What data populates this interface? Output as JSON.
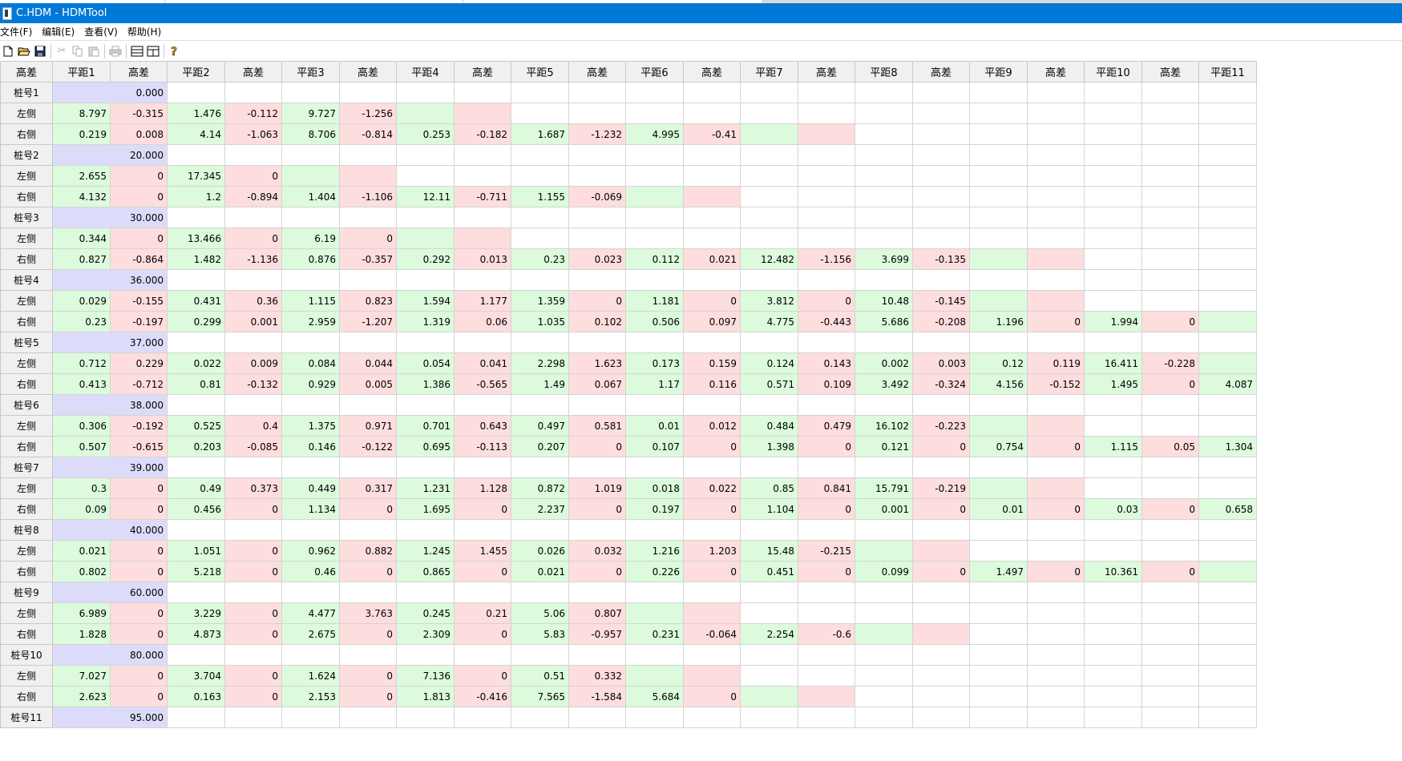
{
  "window": {
    "title": "C.HDM - HDMTool"
  },
  "menu": [
    "文件(F)",
    "编辑(E)",
    "查看(V)",
    "帮助(H)"
  ],
  "toolbar_icons": [
    "new-icon",
    "open-icon",
    "save-icon",
    "cut-icon",
    "copy-icon",
    "paste-icon",
    "print-icon",
    "horizontal-split-icon",
    "vertical-split-icon",
    "help-icon"
  ],
  "colors": {
    "titlebar": "#0078d7",
    "green_cell": "#dcfadc",
    "pink_cell": "#fddddd",
    "station_cell": "#dcdcfa"
  },
  "grid": {
    "header": [
      "高差",
      "平距1",
      "高差",
      "平距2",
      "高差",
      "平距3",
      "高差",
      "平距4",
      "高差",
      "平距5",
      "高差",
      "平距6",
      "高差",
      "平距7",
      "高差",
      "平距8",
      "高差",
      "平距9",
      "高差",
      "平距10",
      "高差",
      "平距11"
    ],
    "rows": [
      {
        "label": "桩号1",
        "type": "station",
        "value": "0.000"
      },
      {
        "label": "左侧",
        "type": "side",
        "cells": [
          "8.797",
          "-0.315",
          "1.476",
          "-0.112",
          "9.727",
          "-1.256",
          "",
          ""
        ]
      },
      {
        "label": "右侧",
        "type": "side",
        "cells": [
          "0.219",
          "0.008",
          "4.14",
          "-1.063",
          "8.706",
          "-0.814",
          "0.253",
          "-0.182",
          "1.687",
          "-1.232",
          "4.995",
          "-0.41",
          "",
          ""
        ]
      },
      {
        "label": "桩号2",
        "type": "station",
        "value": "20.000"
      },
      {
        "label": "左侧",
        "type": "side",
        "cells": [
          "2.655",
          "0",
          "17.345",
          "0",
          "",
          ""
        ]
      },
      {
        "label": "右侧",
        "type": "side",
        "cells": [
          "4.132",
          "0",
          "1.2",
          "-0.894",
          "1.404",
          "-1.106",
          "12.11",
          "-0.711",
          "1.155",
          "-0.069",
          "",
          ""
        ]
      },
      {
        "label": "桩号3",
        "type": "station",
        "value": "30.000"
      },
      {
        "label": "左侧",
        "type": "side",
        "cells": [
          "0.344",
          "0",
          "13.466",
          "0",
          "6.19",
          "0",
          "",
          ""
        ]
      },
      {
        "label": "右侧",
        "type": "side",
        "cells": [
          "0.827",
          "-0.864",
          "1.482",
          "-1.136",
          "0.876",
          "-0.357",
          "0.292",
          "0.013",
          "0.23",
          "0.023",
          "0.112",
          "0.021",
          "12.482",
          "-1.156",
          "3.699",
          "-0.135",
          "",
          ""
        ]
      },
      {
        "label": "桩号4",
        "type": "station",
        "value": "36.000"
      },
      {
        "label": "左侧",
        "type": "side",
        "cells": [
          "0.029",
          "-0.155",
          "0.431",
          "0.36",
          "1.115",
          "0.823",
          "1.594",
          "1.177",
          "1.359",
          "0",
          "1.181",
          "0",
          "3.812",
          "0",
          "10.48",
          "-0.145",
          "",
          ""
        ]
      },
      {
        "label": "右侧",
        "type": "side",
        "cells": [
          "0.23",
          "-0.197",
          "0.299",
          "0.001",
          "2.959",
          "-1.207",
          "1.319",
          "0.06",
          "1.035",
          "0.102",
          "0.506",
          "0.097",
          "4.775",
          "-0.443",
          "5.686",
          "-0.208",
          "1.196",
          "0",
          "1.994",
          "0",
          ""
        ]
      },
      {
        "label": "桩号5",
        "type": "station",
        "value": "37.000"
      },
      {
        "label": "左侧",
        "type": "side",
        "cells": [
          "0.712",
          "0.229",
          "0.022",
          "0.009",
          "0.084",
          "0.044",
          "0.054",
          "0.041",
          "2.298",
          "1.623",
          "0.173",
          "0.159",
          "0.124",
          "0.143",
          "0.002",
          "0.003",
          "0.12",
          "0.119",
          "16.411",
          "-0.228",
          ""
        ]
      },
      {
        "label": "右侧",
        "type": "side",
        "cells": [
          "0.413",
          "-0.712",
          "0.81",
          "-0.132",
          "0.929",
          "0.005",
          "1.386",
          "-0.565",
          "1.49",
          "0.067",
          "1.17",
          "0.116",
          "0.571",
          "0.109",
          "3.492",
          "-0.324",
          "4.156",
          "-0.152",
          "1.495",
          "0",
          "4.087"
        ]
      },
      {
        "label": "桩号6",
        "type": "station",
        "value": "38.000"
      },
      {
        "label": "左侧",
        "type": "side",
        "cells": [
          "0.306",
          "-0.192",
          "0.525",
          "0.4",
          "1.375",
          "0.971",
          "0.701",
          "0.643",
          "0.497",
          "0.581",
          "0.01",
          "0.012",
          "0.484",
          "0.479",
          "16.102",
          "-0.223",
          "",
          ""
        ]
      },
      {
        "label": "右侧",
        "type": "side",
        "cells": [
          "0.507",
          "-0.615",
          "0.203",
          "-0.085",
          "0.146",
          "-0.122",
          "0.695",
          "-0.113",
          "0.207",
          "0",
          "0.107",
          "0",
          "1.398",
          "0",
          "0.121",
          "0",
          "0.754",
          "0",
          "1.115",
          "0.05",
          "1.304"
        ]
      },
      {
        "label": "桩号7",
        "type": "station",
        "value": "39.000"
      },
      {
        "label": "左侧",
        "type": "side",
        "cells": [
          "0.3",
          "0",
          "0.49",
          "0.373",
          "0.449",
          "0.317",
          "1.231",
          "1.128",
          "0.872",
          "1.019",
          "0.018",
          "0.022",
          "0.85",
          "0.841",
          "15.791",
          "-0.219",
          "",
          ""
        ]
      },
      {
        "label": "右侧",
        "type": "side",
        "cells": [
          "0.09",
          "0",
          "0.456",
          "0",
          "1.134",
          "0",
          "1.695",
          "0",
          "2.237",
          "0",
          "0.197",
          "0",
          "1.104",
          "0",
          "0.001",
          "0",
          "0.01",
          "0",
          "0.03",
          "0",
          "0.658"
        ]
      },
      {
        "label": "桩号8",
        "type": "station",
        "value": "40.000"
      },
      {
        "label": "左侧",
        "type": "side",
        "cells": [
          "0.021",
          "0",
          "1.051",
          "0",
          "0.962",
          "0.882",
          "1.245",
          "1.455",
          "0.026",
          "0.032",
          "1.216",
          "1.203",
          "15.48",
          "-0.215",
          "",
          ""
        ]
      },
      {
        "label": "右侧",
        "type": "side",
        "cells": [
          "0.802",
          "0",
          "5.218",
          "0",
          "0.46",
          "0",
          "0.865",
          "0",
          "0.021",
          "0",
          "0.226",
          "0",
          "0.451",
          "0",
          "0.099",
          "0",
          "1.497",
          "0",
          "10.361",
          "0",
          ""
        ]
      },
      {
        "label": "桩号9",
        "type": "station",
        "value": "60.000"
      },
      {
        "label": "左侧",
        "type": "side",
        "cells": [
          "6.989",
          "0",
          "3.229",
          "0",
          "4.477",
          "3.763",
          "0.245",
          "0.21",
          "5.06",
          "0.807",
          "",
          ""
        ]
      },
      {
        "label": "右侧",
        "type": "side",
        "cells": [
          "1.828",
          "0",
          "4.873",
          "0",
          "2.675",
          "0",
          "2.309",
          "0",
          "5.83",
          "-0.957",
          "0.231",
          "-0.064",
          "2.254",
          "-0.6",
          "",
          ""
        ]
      },
      {
        "label": "桩号10",
        "type": "station",
        "value": "80.000"
      },
      {
        "label": "左侧",
        "type": "side",
        "cells": [
          "7.027",
          "0",
          "3.704",
          "0",
          "1.624",
          "0",
          "7.136",
          "0",
          "0.51",
          "0.332",
          "",
          ""
        ]
      },
      {
        "label": "右侧",
        "type": "side",
        "cells": [
          "2.623",
          "0",
          "0.163",
          "0",
          "2.153",
          "0",
          "1.813",
          "-0.416",
          "7.565",
          "-1.584",
          "5.684",
          "0",
          "",
          ""
        ]
      },
      {
        "label": "桩号11",
        "type": "station",
        "value": "95.000"
      }
    ]
  }
}
